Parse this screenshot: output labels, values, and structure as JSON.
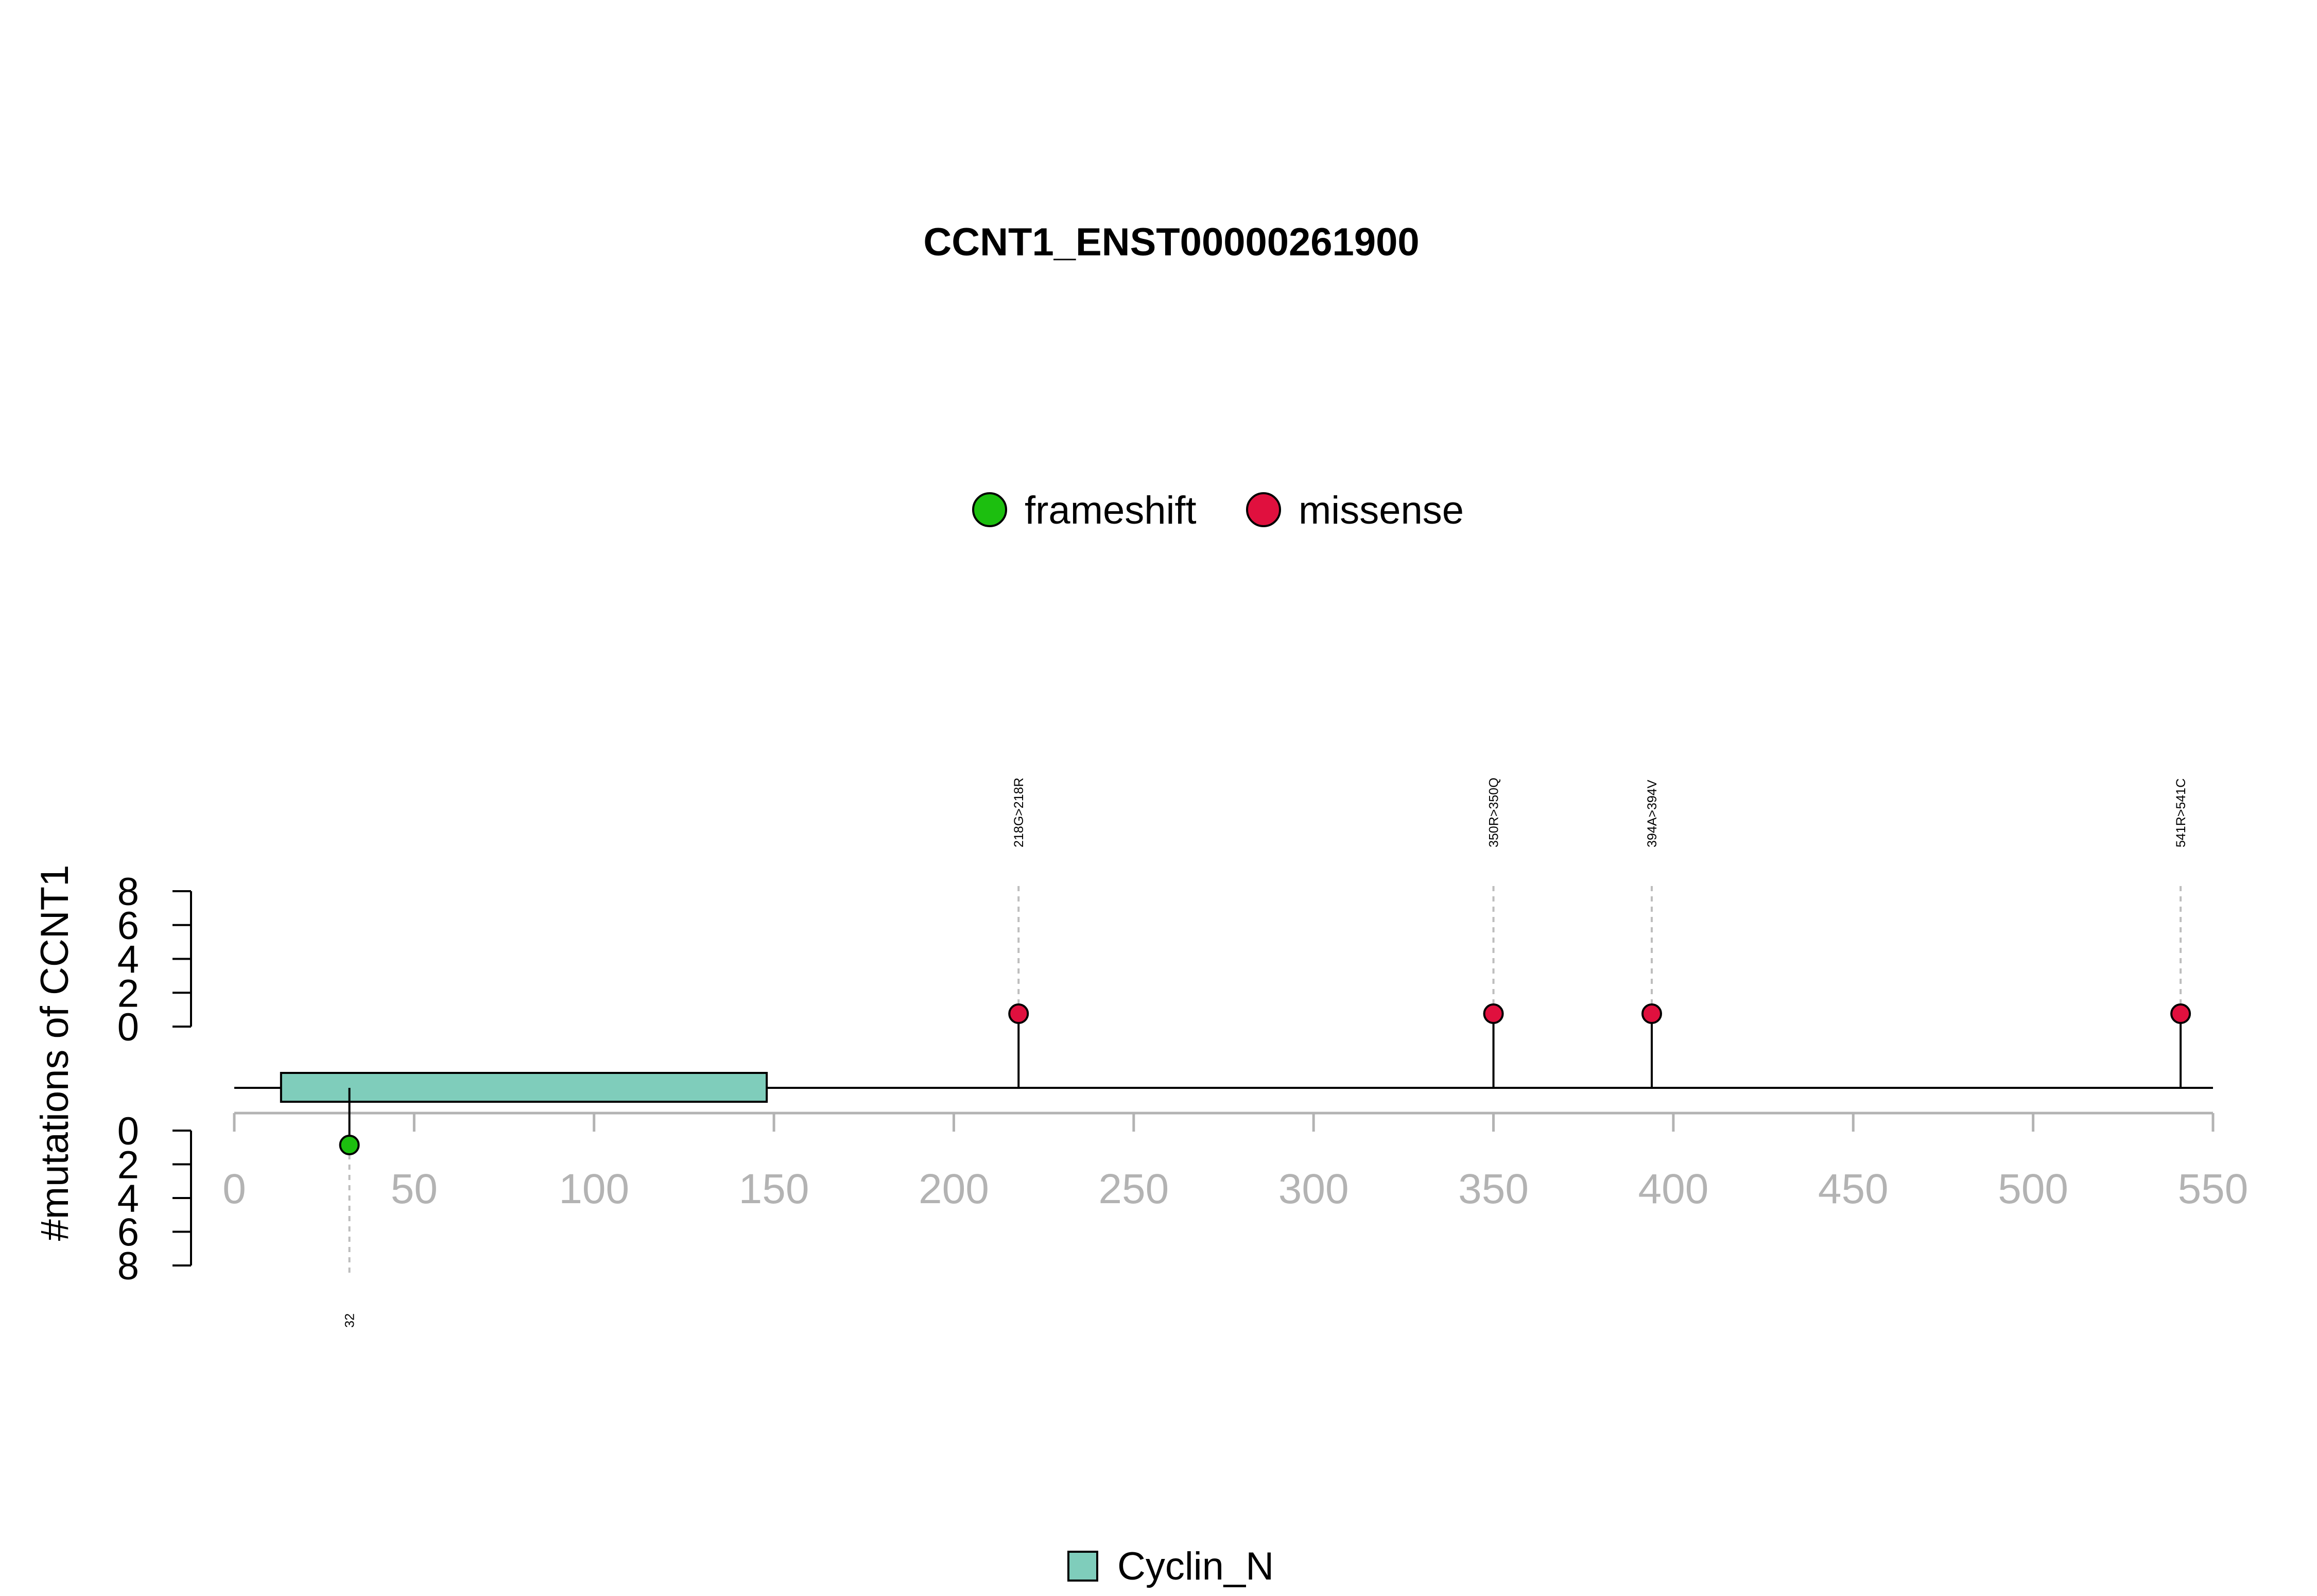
{
  "chart_data": {
    "type": "lollipop",
    "title": "CCNT1_ENST00000261900",
    "ylabel": "#mutations of CCNT1",
    "xlim": [
      0,
      550
    ],
    "xticks": [
      0,
      50,
      100,
      150,
      200,
      250,
      300,
      350,
      400,
      450,
      500,
      550
    ],
    "yticks_top": [
      0,
      2,
      4,
      6,
      8
    ],
    "yticks_bottom": [
      0,
      2,
      4,
      6,
      8
    ],
    "ylim_top": [
      0,
      8
    ],
    "ylim_bottom": [
      0,
      8
    ],
    "protein_length": 550,
    "mutation_legend": [
      {
        "name": "frameshift",
        "color": "#1cbf0f"
      },
      {
        "name": "missense",
        "color": "#e0103e"
      }
    ],
    "domains": [
      {
        "name": "Cyclin_N",
        "start": 13,
        "end": 148,
        "color": "#7fcdbb"
      }
    ],
    "domain_legend": [
      {
        "name": "Cyclin_N",
        "color": "#7fcdbb"
      }
    ],
    "mutations": [
      {
        "position": 32,
        "label": "32",
        "type": "frameshift",
        "count": 1,
        "side": "bottom"
      },
      {
        "position": 218,
        "label": "218G>218R",
        "type": "missense",
        "count": 1,
        "side": "top"
      },
      {
        "position": 350,
        "label": "350R>350Q",
        "type": "missense",
        "count": 1,
        "side": "top"
      },
      {
        "position": 394,
        "label": "394A>394V",
        "type": "missense",
        "count": 1,
        "side": "top"
      },
      {
        "position": 541,
        "label": "541R>541C",
        "type": "missense",
        "count": 1,
        "side": "top"
      }
    ]
  }
}
